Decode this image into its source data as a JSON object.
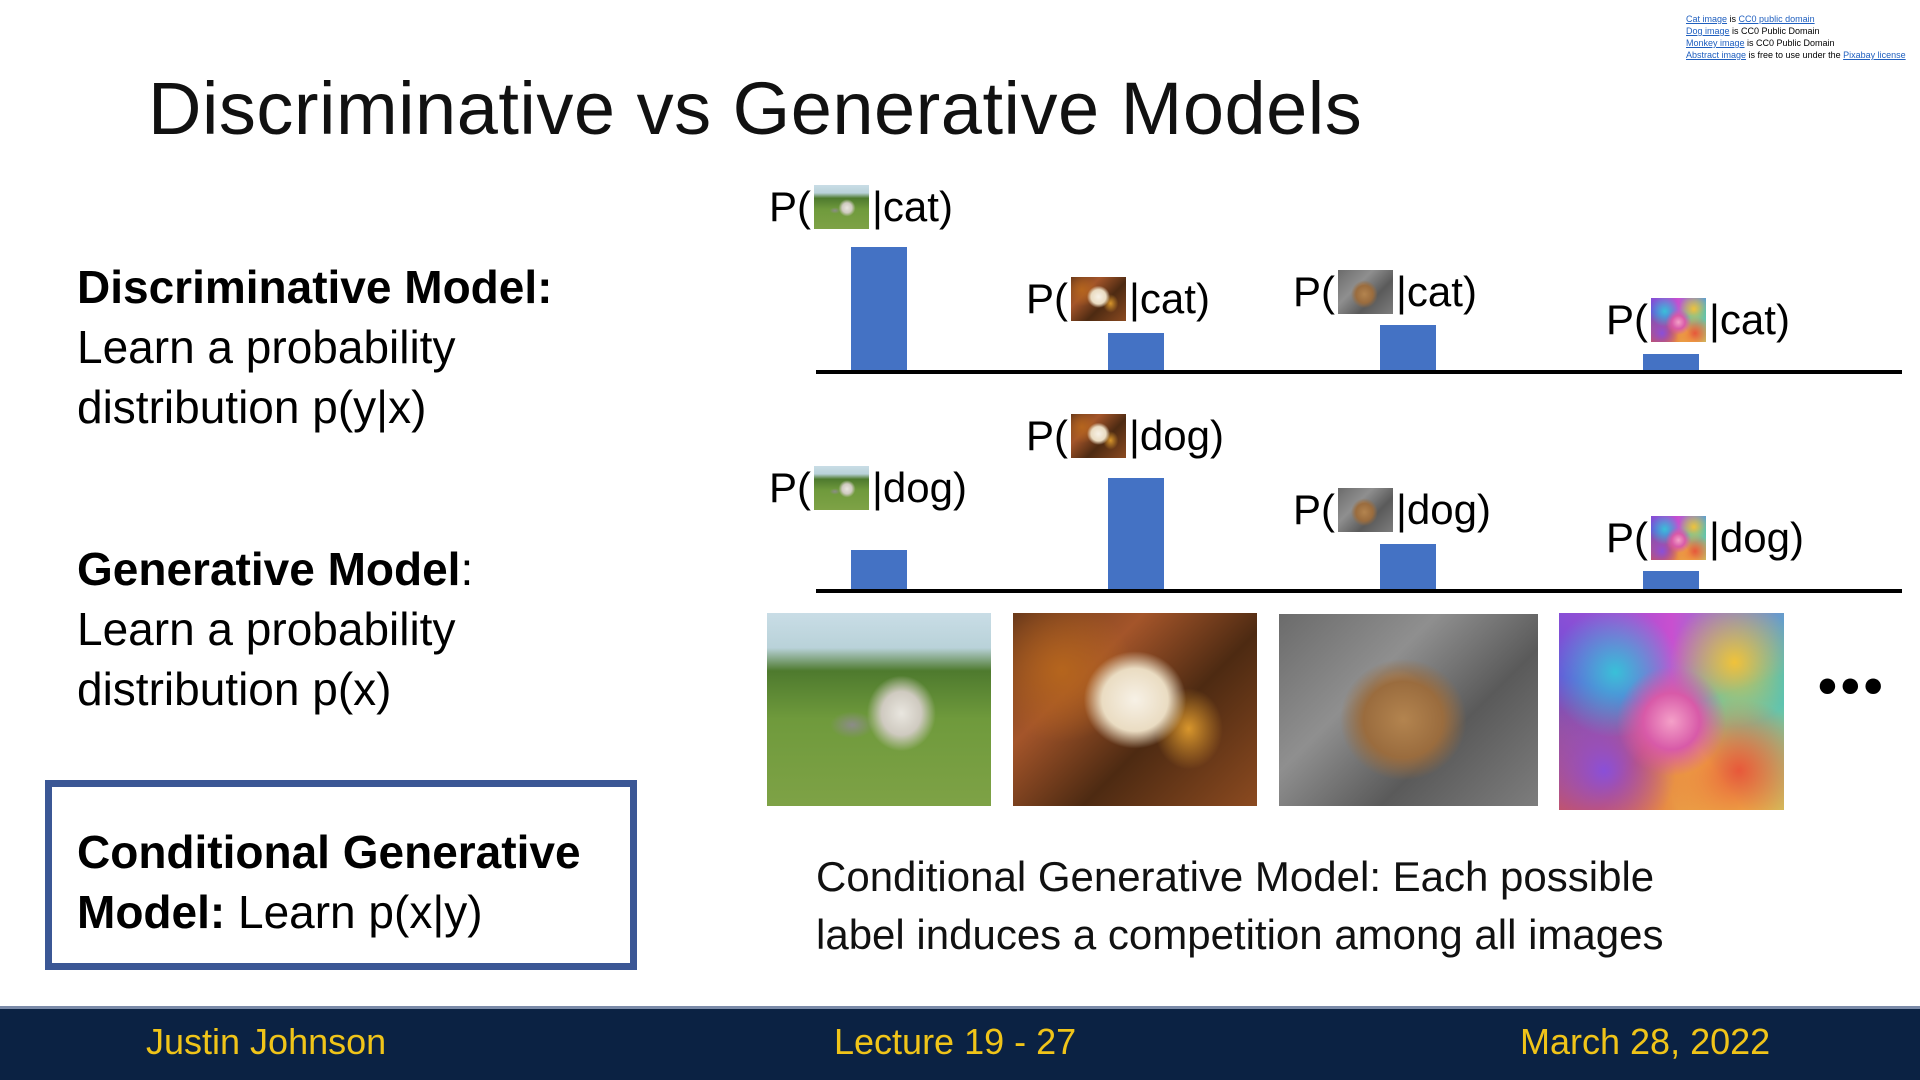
{
  "slide": {
    "title": "Discriminative vs Generative Models",
    "credits": [
      {
        "link": "Cat image",
        "mid": " is ",
        "link2": "CC0 public domain",
        "rest": ""
      },
      {
        "link": "Dog image",
        "mid": " is CC0 Public Domain",
        "link2": "",
        "rest": ""
      },
      {
        "link": "Monkey image",
        "mid": " is CC0 Public Domain",
        "link2": "",
        "rest": ""
      },
      {
        "link": "Abstract image",
        "mid": " is free to use under the ",
        "link2": "Pixabay license",
        "rest": ""
      }
    ],
    "discriminative": {
      "heading": "Discriminative Model:",
      "line1": "Learn a probability",
      "line2": "distribution p(y|x)"
    },
    "generative": {
      "heading": "Generative Model",
      "colon": ":",
      "line1": "Learn a probability",
      "line2": "distribution p(x)"
    },
    "conditional": {
      "line1": "Conditional Generative",
      "heading2": "Model:",
      "rest2": " Learn p(x|y)"
    },
    "labels": {
      "p_open": "P(",
      "cat_close": "|cat)",
      "dog_close": "|dog)"
    },
    "images": [
      {
        "icon": "cat-image"
      },
      {
        "icon": "dog-image"
      },
      {
        "icon": "monkey-image"
      },
      {
        "icon": "abstract-image"
      }
    ],
    "ellipsis": "•••",
    "caption": {
      "line1": "Conditional Generative Model: Each possible",
      "line2": "label induces a competition among all images"
    },
    "footer": {
      "author": "Justin Johnson",
      "lecture": "Lecture 19 -   27",
      "date": "March 28, 2022"
    },
    "colors": {
      "bar": "#4472c4",
      "box_border": "#3b5795",
      "footer_bg": "#0b2243",
      "footer_text": "#f0c419"
    }
  },
  "chart_data": [
    {
      "type": "bar",
      "categories": [
        "cat image",
        "dog image",
        "monkey image",
        "abstract image"
      ],
      "series": [
        {
          "name": "|cat",
          "values": [
            0.6,
            0.18,
            0.22,
            0.08
          ]
        }
      ],
      "title": "",
      "xlabel": "",
      "ylabel": ""
    },
    {
      "type": "bar",
      "categories": [
        "cat image",
        "dog image",
        "monkey image",
        "abstract image"
      ],
      "series": [
        {
          "name": "|dog",
          "values": [
            0.19,
            0.54,
            0.22,
            0.09
          ]
        }
      ],
      "title": "",
      "xlabel": "",
      "ylabel": ""
    }
  ]
}
